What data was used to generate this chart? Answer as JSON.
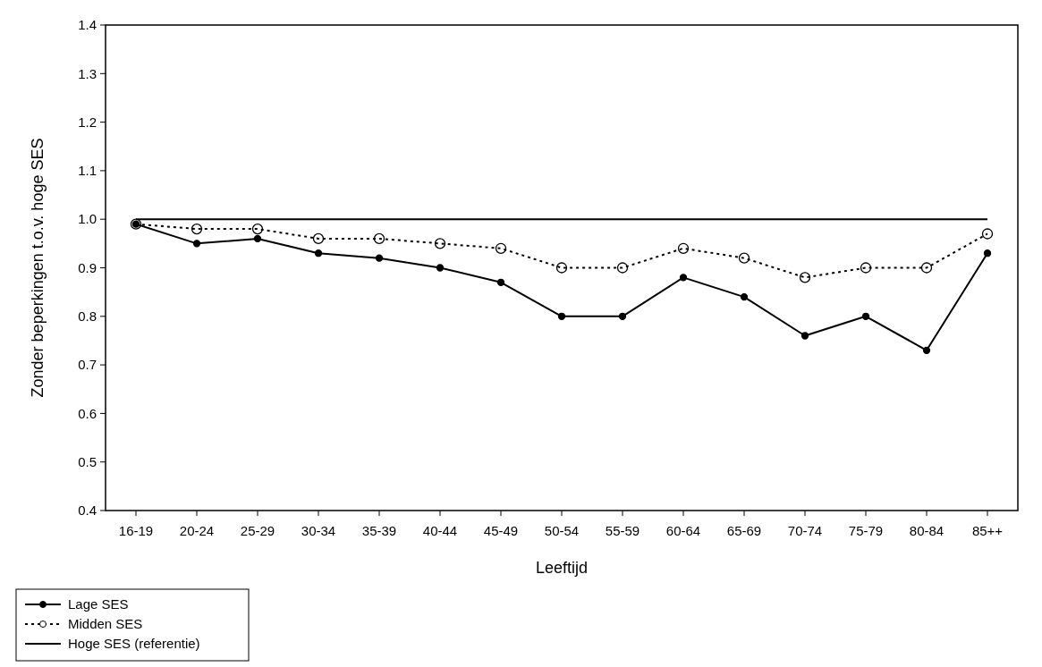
{
  "chart_data": {
    "type": "line",
    "xlabel": "Leeftijd",
    "ylabel": "Zonder beperkingen t.o.v. hoge SES",
    "categories": [
      "16-19",
      "20-24",
      "25-29",
      "30-34",
      "35-39",
      "40-44",
      "45-49",
      "50-54",
      "55-59",
      "60-64",
      "65-69",
      "70-74",
      "75-79",
      "80-84",
      "85++"
    ],
    "ylim": [
      0.4,
      1.4
    ],
    "yticks": [
      {
        "value": 0.4,
        "label": "0.4"
      },
      {
        "value": 0.5,
        "label": "0.5"
      },
      {
        "value": 0.6,
        "label": "0.6"
      },
      {
        "value": 0.7,
        "label": "0.7"
      },
      {
        "value": 0.8,
        "label": "0.8"
      },
      {
        "value": 0.9,
        "label": "0.9"
      },
      {
        "value": 1.0,
        "label": "1.0"
      },
      {
        "value": 1.1,
        "label": "1.1"
      },
      {
        "value": 1.2,
        "label": "1.2"
      },
      {
        "value": 1.3,
        "label": "1.3"
      },
      {
        "value": 1.4,
        "label": "1.4"
      }
    ],
    "legend": "bottom left",
    "grid": false,
    "series": [
      {
        "name": "Lage SES",
        "color": "#000000",
        "marker": "circle",
        "line_style": "solid",
        "values": [
          0.99,
          0.95,
          0.96,
          0.93,
          0.92,
          0.9,
          0.87,
          0.8,
          0.8,
          0.88,
          0.84,
          0.76,
          0.8,
          0.73,
          0.93
        ]
      },
      {
        "name": "Midden SES",
        "color": "#000000",
        "marker": "circle",
        "line_style": "dotted",
        "values": [
          0.99,
          0.98,
          0.98,
          0.96,
          0.96,
          0.95,
          0.94,
          0.9,
          0.9,
          0.94,
          0.92,
          0.88,
          0.9,
          0.9,
          0.97
        ]
      },
      {
        "name": "Hoge SES (referentie)",
        "color": "#000000",
        "marker": "none",
        "line_style": "solid",
        "values": [
          1,
          1,
          1,
          1,
          1,
          1,
          1,
          1,
          1,
          1,
          1,
          1,
          1,
          1,
          1
        ]
      }
    ]
  }
}
